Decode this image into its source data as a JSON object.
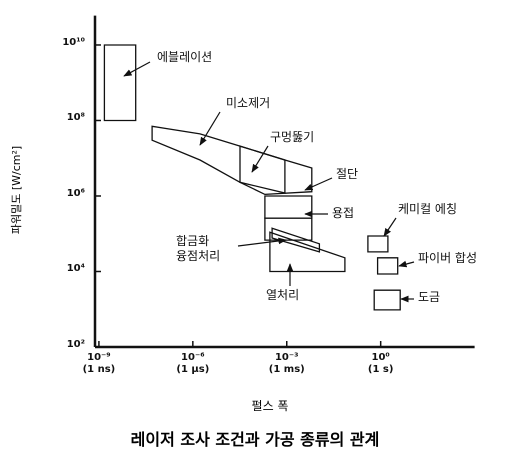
{
  "chart_data": {
    "type": "region",
    "title": "레이저 조사 조건과 가공 종류의 관계",
    "x_label": "펄스 폭",
    "y_label": "파워밀도 [W/cm²]",
    "xscale": "log",
    "yscale": "log",
    "xlim": [
      7.5e-10,
      1000
    ],
    "ylim": [
      100,
      60000000000.0
    ],
    "xticks": [
      {
        "value": 1e-09,
        "label": "10⁻⁹\n(1 ns)"
      },
      {
        "value": 1e-06,
        "label": "10⁻⁶\n(1 μs)"
      },
      {
        "value": 0.001,
        "label": "10⁻³\n(1 ms)"
      },
      {
        "value": 1,
        "label": "10⁰\n(1 s)"
      }
    ],
    "yticks": [
      {
        "value": 100,
        "label": "10²"
      },
      {
        "value": 10000,
        "label": "10⁴"
      },
      {
        "value": 1000000,
        "label": "10⁶"
      },
      {
        "value": 100000000,
        "label": "10⁸"
      },
      {
        "value": 10000000000,
        "label": "10¹⁰"
      }
    ],
    "color": "#111111",
    "series": [
      {
        "name": "에블레이션",
        "x": [
          1.5e-09,
          1.5e-08,
          1.5e-08,
          1.5e-09
        ],
        "y": [
          10000000000.0,
          10000000000.0,
          100000000.0,
          100000000.0
        ]
      },
      {
        "name": "미소제거",
        "x": [
          5e-08,
          1.7e-06,
          3.2e-05,
          0.00087,
          0.0063,
          0.0063,
          0.0002,
          3.2e-05,
          1.7e-06,
          5e-08
        ],
        "y": [
          70000000.0,
          44000000.0,
          21000000.0,
          9000000.0,
          5500000.0,
          1300000.0,
          1100000.0,
          2300000.0,
          9000000.0,
          30000000.0
        ]
      },
      {
        "name": "구멍뚫기",
        "x": [
          3.2e-05,
          0.00087,
          0.00087,
          3.2e-05
        ],
        "y": [
          21000000.0,
          9000000.0,
          1200000.0,
          2300000.0
        ]
      },
      {
        "name": "절단",
        "x": [
          0.0002,
          0.0063,
          0.0063,
          0.0002
        ],
        "y": [
          1000000.0,
          1000000.0,
          260000.0,
          260000.0
        ]
      },
      {
        "name": "용접",
        "x": [
          0.0002,
          0.0063,
          0.0063,
          0.0002
        ],
        "y": [
          260000.0,
          260000.0,
          68000.0,
          68000.0
        ]
      },
      {
        "name": "합금화\n융점처리",
        "x": [
          0.00034,
          0.011,
          0.011,
          0.00034
        ],
        "y": [
          140000.0,
          54000.0,
          33000.0,
          77000.0
        ]
      },
      {
        "name": "열처리",
        "x": [
          0.00029,
          0.072,
          0.072,
          0.00029
        ],
        "y": [
          110000.0,
          23000.0,
          10000.0,
          10000.0
        ]
      },
      {
        "name": "케미컬 에칭",
        "x": [
          0.39,
          1.7,
          1.7,
          0.39
        ],
        "y": [
          87000.0,
          87000.0,
          33000.0,
          33000.0
        ]
      },
      {
        "name": "파이버 합성",
        "x": [
          0.8,
          3.5,
          3.5,
          0.8
        ],
        "y": [
          23000.0,
          23000.0,
          8600.0,
          8600.0
        ]
      },
      {
        "name": "도금",
        "x": [
          0.62,
          4.2,
          4.2,
          0.62
        ],
        "y": [
          3200.0,
          3200.0,
          960,
          960
        ]
      }
    ]
  }
}
